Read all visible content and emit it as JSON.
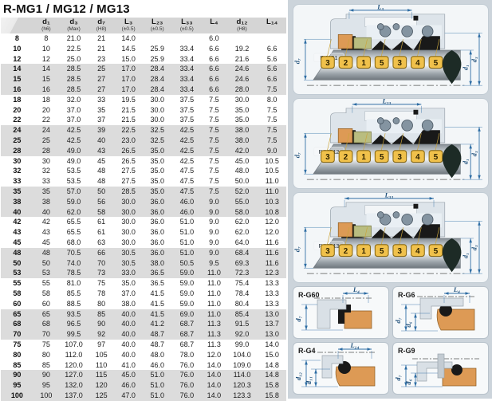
{
  "title": "R-MG1 / MG12 / MG13",
  "table": {
    "columns": [
      {
        "label": "",
        "sub": ""
      },
      {
        "label": "d₁",
        "sub": "(h6)"
      },
      {
        "label": "d₃",
        "sub": "(Max)"
      },
      {
        "label": "d₇",
        "sub": "(H8)"
      },
      {
        "label": "L₃",
        "sub": "(±0.5)"
      },
      {
        "label": "L₂₃",
        "sub": "(±0.5)"
      },
      {
        "label": "L₃₃",
        "sub": "(±0.5)"
      },
      {
        "label": "L₄",
        "sub": ""
      },
      {
        "label": "d₁₂",
        "sub": "(H8)"
      },
      {
        "label": "L₁₄",
        "sub": ""
      }
    ],
    "rows": [
      [
        "8",
        "8",
        "21.0",
        "21",
        "14.0",
        "",
        "",
        "6.0",
        "",
        ""
      ],
      [
        "10",
        "10",
        "22.5",
        "21",
        "14.5",
        "25.9",
        "33.4",
        "6.6",
        "19.2",
        "6.6"
      ],
      [
        "12",
        "12",
        "25.0",
        "23",
        "15.0",
        "25.9",
        "33.4",
        "6.6",
        "21.6",
        "5.6"
      ],
      [
        "14",
        "14",
        "28.5",
        "25",
        "17.0",
        "28.4",
        "33.4",
        "6.6",
        "24.6",
        "5.6"
      ],
      [
        "15",
        "15",
        "28.5",
        "27",
        "17.0",
        "28.4",
        "33.4",
        "6.6",
        "24.6",
        "6.6"
      ],
      [
        "16",
        "16",
        "28.5",
        "27",
        "17.0",
        "28.4",
        "33.4",
        "6.6",
        "28.0",
        "7.5"
      ],
      [
        "18",
        "18",
        "32.0",
        "33",
        "19.5",
        "30.0",
        "37.5",
        "7.5",
        "30.0",
        "8.0"
      ],
      [
        "20",
        "20",
        "37.0",
        "35",
        "21.5",
        "30.0",
        "37.5",
        "7.5",
        "35.0",
        "7.5"
      ],
      [
        "22",
        "22",
        "37.0",
        "37",
        "21.5",
        "30.0",
        "37.5",
        "7.5",
        "35.0",
        "7.5"
      ],
      [
        "24",
        "24",
        "42.5",
        "39",
        "22.5",
        "32.5",
        "42.5",
        "7.5",
        "38.0",
        "7.5"
      ],
      [
        "25",
        "25",
        "42.5",
        "40",
        "23.0",
        "32.5",
        "42.5",
        "7.5",
        "38.0",
        "7.5"
      ],
      [
        "28",
        "28",
        "49.0",
        "43",
        "26.5",
        "35.0",
        "42.5",
        "7.5",
        "42.0",
        "9.0"
      ],
      [
        "30",
        "30",
        "49.0",
        "45",
        "26.5",
        "35.0",
        "42.5",
        "7.5",
        "45.0",
        "10.5"
      ],
      [
        "32",
        "32",
        "53.5",
        "48",
        "27.5",
        "35.0",
        "47.5",
        "7.5",
        "48.0",
        "10.5"
      ],
      [
        "33",
        "33",
        "53.5",
        "48",
        "27.5",
        "35.0",
        "47.5",
        "7.5",
        "50.0",
        "11.0"
      ],
      [
        "35",
        "35",
        "57.0",
        "50",
        "28.5",
        "35.0",
        "47.5",
        "7.5",
        "52.0",
        "11.0"
      ],
      [
        "38",
        "38",
        "59.0",
        "56",
        "30.0",
        "36.0",
        "46.0",
        "9.0",
        "55.0",
        "10.3"
      ],
      [
        "40",
        "40",
        "62.0",
        "58",
        "30.0",
        "36.0",
        "46.0",
        "9.0",
        "58.0",
        "10.8"
      ],
      [
        "42",
        "42",
        "65.5",
        "61",
        "30.0",
        "36.0",
        "51.0",
        "9.0",
        "62.0",
        "12.0"
      ],
      [
        "43",
        "43",
        "65.5",
        "61",
        "30.0",
        "36.0",
        "51.0",
        "9.0",
        "62.0",
        "12.0"
      ],
      [
        "45",
        "45",
        "68.0",
        "63",
        "30.0",
        "36.0",
        "51.0",
        "9.0",
        "64.0",
        "11.6"
      ],
      [
        "48",
        "48",
        "70.5",
        "66",
        "30.5",
        "36.0",
        "51.0",
        "9.0",
        "68.4",
        "11.6"
      ],
      [
        "50",
        "50",
        "74.0",
        "70",
        "30.5",
        "38.0",
        "50.5",
        "9.5",
        "69.3",
        "11.6"
      ],
      [
        "53",
        "53",
        "78.5",
        "73",
        "33.0",
        "36.5",
        "59.0",
        "11.0",
        "72.3",
        "12.3"
      ],
      [
        "55",
        "55",
        "81.0",
        "75",
        "35.0",
        "36.5",
        "59.0",
        "11.0",
        "75.4",
        "13.3"
      ],
      [
        "58",
        "58",
        "85.5",
        "78",
        "37.0",
        "41.5",
        "59.0",
        "11.0",
        "78.4",
        "13.3"
      ],
      [
        "60",
        "60",
        "88.5",
        "80",
        "38.0",
        "41.5",
        "59.0",
        "11.0",
        "80.4",
        "13.3"
      ],
      [
        "65",
        "65",
        "93.5",
        "85",
        "40.0",
        "41.5",
        "69.0",
        "11.0",
        "85.4",
        "13.0"
      ],
      [
        "68",
        "68",
        "96.5",
        "90",
        "40.0",
        "41.2",
        "68.7",
        "11.3",
        "91.5",
        "13.7"
      ],
      [
        "70",
        "70",
        "99.5",
        "92",
        "40.0",
        "48.7",
        "68.7",
        "11.3",
        "92.0",
        "13.0"
      ],
      [
        "75",
        "75",
        "107.0",
        "97",
        "40.0",
        "48.7",
        "68.7",
        "11.3",
        "99.0",
        "14.0"
      ],
      [
        "80",
        "80",
        "112.0",
        "105",
        "40.0",
        "48.0",
        "78.0",
        "12.0",
        "104.0",
        "15.0"
      ],
      [
        "85",
        "85",
        "120.0",
        "110",
        "41.0",
        "46.0",
        "76.0",
        "14.0",
        "109.0",
        "14.8"
      ],
      [
        "90",
        "90",
        "127.0",
        "115",
        "45.0",
        "51.0",
        "76.0",
        "14.0",
        "114.0",
        "14.8"
      ],
      [
        "95",
        "95",
        "132.0",
        "120",
        "46.0",
        "51.0",
        "76.0",
        "14.0",
        "120.3",
        "15.8"
      ],
      [
        "100",
        "100",
        "137.0",
        "125",
        "47.0",
        "51.0",
        "76.0",
        "14.0",
        "123.3",
        "15.8"
      ]
    ]
  },
  "diagrams": {
    "mg": [
      {
        "label": "R-MG1",
        "dim_top": "L₃",
        "dim_left": "d₇",
        "dim_right_inner": "d₁",
        "dim_right_outer": "d₃",
        "badges": [
          "3",
          "2",
          "1",
          "5",
          "3",
          "4",
          "5"
        ]
      },
      {
        "label": "R-MG12",
        "dim_top": "L₂₃",
        "dim_left": "d₇",
        "dim_right_inner": "d₁",
        "dim_right_outer": "d₃",
        "badges": [
          "3",
          "2",
          "1",
          "5",
          "3",
          "4",
          "5"
        ]
      },
      {
        "label": "R-MG13",
        "dim_top": "L₃₃",
        "dim_left": "d₇",
        "dim_right_inner": "d₁",
        "dim_right_outer": "d₃",
        "badges": [
          "3",
          "2",
          "1",
          "5",
          "3",
          "4",
          "5"
        ]
      }
    ],
    "small": [
      {
        "label": "R-G60",
        "dim_top": "L₄",
        "dims_left": [
          "d₇"
        ]
      },
      {
        "label": "R-G6",
        "dim_top": "L₄",
        "dims_left": [
          "d₇",
          "d₆"
        ]
      },
      {
        "label": "R-G4",
        "dim_top": "L₁₄",
        "dims_left": [
          "d₁₂",
          "d₁₁"
        ]
      },
      {
        "label": "R-G9",
        "dim_top": "",
        "dims_left": [
          "d₇",
          "d₆"
        ]
      }
    ]
  },
  "colors": {
    "accent_blue": "#2e6da4",
    "badge_gold": "#f0c14b",
    "badge_border": "#8a6a14",
    "part_orange": "#dd9a55",
    "part_olive": "#b9bd80",
    "part_black": "#191919",
    "spring_grey": "#8494a1",
    "housing_grey": "#dde4ea",
    "panel_bg": "#ccd4db",
    "row_stripe": "#dcdcdc",
    "header_bg": "#d5d5d5",
    "drop_dark": "#1d2b26"
  }
}
